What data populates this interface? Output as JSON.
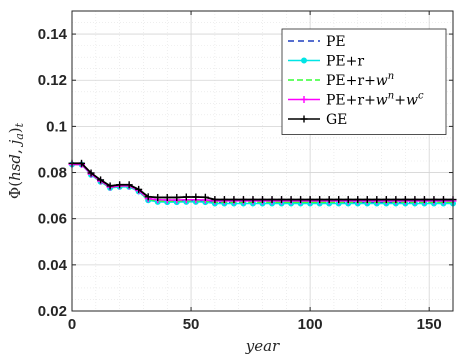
{
  "chart_data": {
    "type": "line",
    "xlabel": "year",
    "ylabel": "Φ(hsd, j_a)_t",
    "xlim": [
      0,
      160
    ],
    "ylim": [
      0.02,
      0.15
    ],
    "xticks": [
      0,
      50,
      100,
      150
    ],
    "yticks": [
      0.02,
      0.04,
      0.06,
      0.08,
      0.1,
      0.12,
      0.14
    ],
    "xtick_labels": [
      "0",
      "50",
      "100",
      "150"
    ],
    "ytick_labels": [
      "0.02",
      "0.04",
      "0.06",
      "0.08",
      "0.1",
      "0.12",
      "0.14"
    ],
    "grid": true,
    "minor_grid": true,
    "legend_position": "top-right",
    "x": [
      0,
      4,
      8,
      12,
      16,
      20,
      24,
      28,
      32,
      36,
      40,
      44,
      48,
      52,
      56,
      60,
      64,
      68,
      72,
      76,
      80,
      84,
      88,
      92,
      96,
      100,
      104,
      108,
      112,
      116,
      120,
      124,
      128,
      132,
      136,
      140,
      144,
      148,
      152,
      156,
      160
    ],
    "series": [
      {
        "name": "PE",
        "legend_main": "PE",
        "legend_sup": "",
        "legend_tail": "",
        "legend_sup2": "",
        "color": "#1f3fbf",
        "dash": "6,4",
        "marker": "none",
        "values": [
          0.0835,
          0.0835,
          0.0792,
          0.0762,
          0.0735,
          0.074,
          0.074,
          0.072,
          0.0683,
          0.0676,
          0.0675,
          0.0675,
          0.0676,
          0.0676,
          0.0675,
          0.067,
          0.067,
          0.067,
          0.067,
          0.067,
          0.067,
          0.067,
          0.067,
          0.067,
          0.067,
          0.067,
          0.067,
          0.067,
          0.067,
          0.067,
          0.067,
          0.067,
          0.067,
          0.067,
          0.067,
          0.067,
          0.067,
          0.067,
          0.067,
          0.067,
          0.067
        ]
      },
      {
        "name": "PE+r",
        "legend_main": "PE+r",
        "legend_sup": "",
        "legend_tail": "",
        "legend_sup2": "",
        "color": "#00e5e5",
        "dash": "",
        "marker": "dot",
        "values": [
          0.0835,
          0.0835,
          0.079,
          0.076,
          0.0733,
          0.0738,
          0.0738,
          0.0718,
          0.068,
          0.0673,
          0.0672,
          0.0672,
          0.0673,
          0.0673,
          0.0672,
          0.0666,
          0.0666,
          0.0666,
          0.0666,
          0.0666,
          0.0666,
          0.0666,
          0.0666,
          0.0666,
          0.0666,
          0.0666,
          0.0666,
          0.0666,
          0.0666,
          0.0666,
          0.0666,
          0.0666,
          0.0666,
          0.0666,
          0.0666,
          0.0666,
          0.0666,
          0.0666,
          0.0666,
          0.0666,
          0.0666
        ]
      },
      {
        "name": "PE+r+w^n",
        "legend_main": "PE+r+",
        "legend_sup": "n",
        "legend_tail": "",
        "legend_sup2": "",
        "color": "#33ff33",
        "dash": "6,3",
        "marker": "none",
        "values": [
          0.0835,
          0.0835,
          0.0792,
          0.0762,
          0.0735,
          0.074,
          0.074,
          0.072,
          0.0684,
          0.0677,
          0.0676,
          0.0676,
          0.0677,
          0.0677,
          0.0676,
          0.0671,
          0.0671,
          0.0671,
          0.0671,
          0.0671,
          0.0671,
          0.0671,
          0.0671,
          0.0671,
          0.0671,
          0.0671,
          0.0671,
          0.0671,
          0.0671,
          0.0671,
          0.0671,
          0.0671,
          0.0671,
          0.0671,
          0.0671,
          0.0671,
          0.0671,
          0.0671,
          0.0671,
          0.0671,
          0.0671
        ]
      },
      {
        "name": "PE+r+w^n+w^c",
        "legend_main": "PE+r+",
        "legend_sup": "n",
        "legend_tail": "+",
        "legend_sup2": "c",
        "color": "#ff00ff",
        "dash": "",
        "marker": "plus",
        "values": [
          0.0835,
          0.0835,
          0.0793,
          0.0763,
          0.0737,
          0.0742,
          0.0742,
          0.0722,
          0.0687,
          0.0682,
          0.0681,
          0.0681,
          0.0682,
          0.0682,
          0.0681,
          0.0677,
          0.0677,
          0.0677,
          0.0677,
          0.0677,
          0.0677,
          0.0677,
          0.0677,
          0.0677,
          0.0677,
          0.0677,
          0.0677,
          0.0677,
          0.0677,
          0.0677,
          0.0677,
          0.0677,
          0.0677,
          0.0677,
          0.0677,
          0.0677,
          0.0677,
          0.0677,
          0.0677,
          0.0677,
          0.0677
        ]
      },
      {
        "name": "GE",
        "legend_main": "GE",
        "legend_sup": "",
        "legend_tail": "",
        "legend_sup2": "",
        "color": "#000000",
        "dash": "",
        "marker": "plus",
        "values": [
          0.084,
          0.084,
          0.0798,
          0.0768,
          0.0742,
          0.0747,
          0.0747,
          0.0727,
          0.0695,
          0.0692,
          0.0692,
          0.0692,
          0.0694,
          0.0694,
          0.0693,
          0.0683,
          0.0683,
          0.0683,
          0.0683,
          0.0683,
          0.0683,
          0.0683,
          0.0683,
          0.0683,
          0.0683,
          0.0683,
          0.0683,
          0.0683,
          0.0683,
          0.0683,
          0.0683,
          0.0683,
          0.0683,
          0.0683,
          0.0683,
          0.0683,
          0.0683,
          0.0683,
          0.0683,
          0.0683,
          0.0683
        ]
      }
    ]
  }
}
